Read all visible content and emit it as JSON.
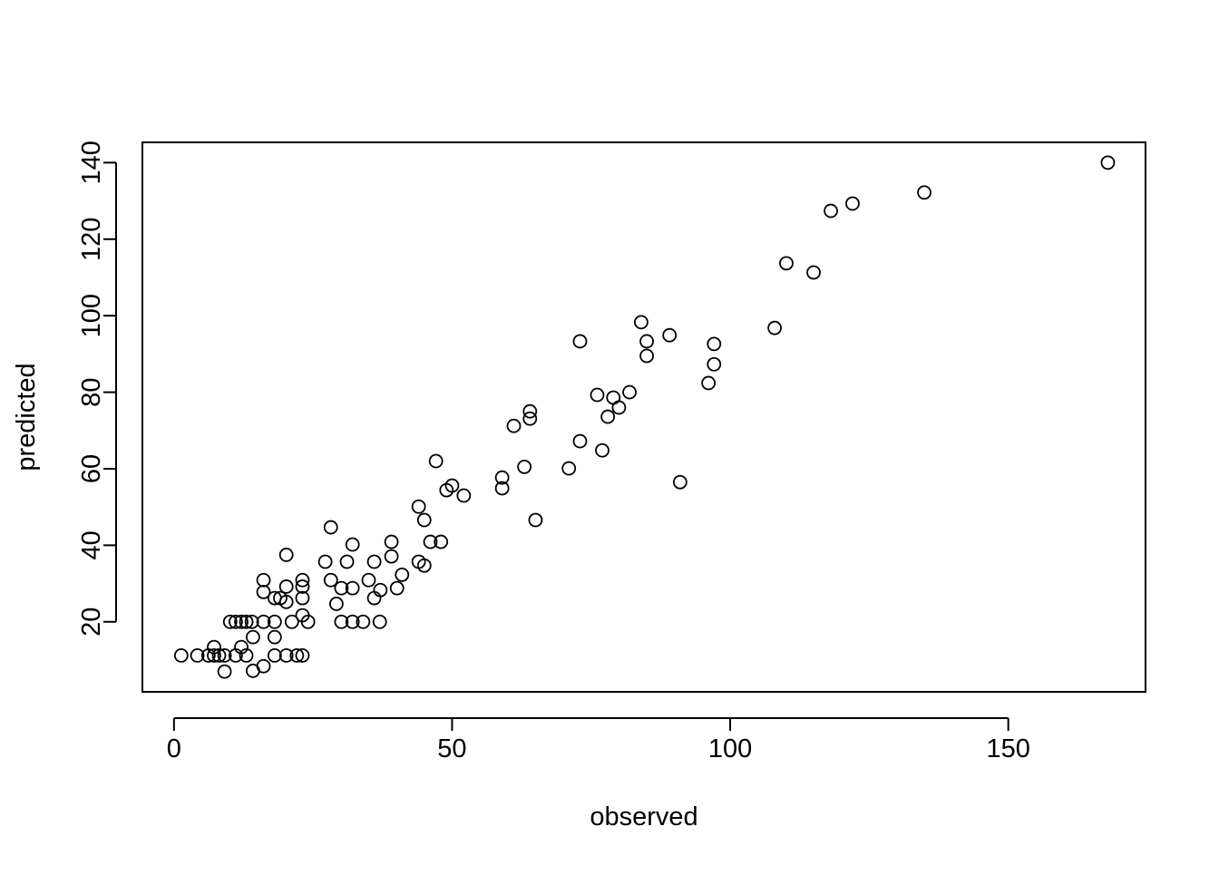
{
  "chart_data": {
    "type": "scatter",
    "x_label": "observed",
    "y_label": "predicted",
    "xlim": [
      -5.68,
      174.68
    ],
    "ylim": [
      1.7,
      145.3
    ],
    "xticks": [
      0,
      50,
      100,
      150
    ],
    "yticks": [
      20,
      40,
      60,
      80,
      100,
      120,
      140
    ],
    "color": "#000000",
    "x": [
      1.3,
      4.2,
      6.2,
      7.2,
      7.2,
      8.1,
      9.1,
      9.1,
      10.1,
      11.1,
      11.1,
      12.1,
      12.1,
      13,
      13,
      14,
      14.2,
      14.2,
      16.1,
      16.1,
      16.1,
      16.1,
      18.1,
      18.1,
      18.1,
      18.1,
      19.1,
      20.2,
      20.2,
      20.2,
      20.2,
      21.2,
      22.1,
      23.1,
      23.1,
      23.1,
      23.1,
      23.1,
      24.1,
      27.2,
      28.2,
      28.2,
      29.2,
      30.1,
      30.1,
      31.1,
      32.1,
      32.1,
      32.1,
      34,
      35,
      36,
      36,
      37,
      37.1,
      39.1,
      39.1,
      40.1,
      41,
      44,
      44,
      45,
      45,
      46.1,
      47.1,
      48,
      49,
      50,
      52.1,
      59,
      59,
      61.1,
      63,
      64,
      64,
      65,
      71,
      73,
      73,
      76.1,
      77,
      78,
      79,
      80,
      81.9,
      84,
      85,
      85,
      89.1,
      91,
      96.1,
      97.1,
      97.1,
      108,
      110.1,
      115,
      118.1,
      122,
      134.9,
      167.9
    ],
    "y": [
      11.2,
      11.2,
      11.2,
      13.4,
      11.2,
      11.2,
      7.0,
      11.2,
      20,
      20,
      11.2,
      20,
      13.4,
      20,
      11.2,
      20,
      16,
      7.2,
      30.9,
      27.8,
      20,
      8.4,
      26.2,
      20,
      16,
      11.2,
      26.2,
      37.5,
      29.2,
      25.2,
      11.2,
      20,
      11.2,
      30.9,
      29.2,
      26.2,
      21.7,
      11.2,
      20,
      35.7,
      44.7,
      30.9,
      24.7,
      28.8,
      20,
      35.7,
      40.2,
      28.8,
      20,
      20,
      30.9,
      35.7,
      26.2,
      20,
      28.3,
      40.9,
      37.1,
      28.8,
      32.3,
      50.1,
      35.7,
      46.6,
      34.7,
      40.9,
      62,
      40.9,
      54.4,
      55.6,
      53,
      57.7,
      54.9,
      71.2,
      60.5,
      75,
      73.1,
      46.6,
      60.1,
      93.3,
      67.2,
      79.3,
      64.8,
      73.6,
      78.6,
      76,
      80,
      98.3,
      93.3,
      89.5,
      94.9,
      56.5,
      82.4,
      92.6,
      87.3,
      96.8,
      113.7,
      111.3,
      127.4,
      129.3,
      132.2,
      140
    ]
  }
}
